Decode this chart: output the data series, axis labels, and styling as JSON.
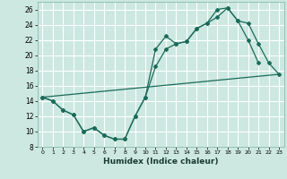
{
  "title": "",
  "xlabel": "Humidex (Indice chaleur)",
  "background_color": "#cce8e0",
  "grid_color": "#ffffff",
  "line_color": "#1a6b5a",
  "xlim": [
    -0.5,
    23.5
  ],
  "ylim": [
    8,
    27
  ],
  "xticks": [
    0,
    1,
    2,
    3,
    4,
    5,
    6,
    7,
    8,
    9,
    10,
    11,
    12,
    13,
    14,
    15,
    16,
    17,
    18,
    19,
    20,
    21,
    22,
    23
  ],
  "yticks": [
    8,
    10,
    12,
    14,
    16,
    18,
    20,
    22,
    24,
    26
  ],
  "series1_x": [
    0,
    1,
    2,
    3,
    4,
    5,
    6,
    7,
    8,
    9,
    10,
    11,
    12,
    13,
    14,
    15,
    16,
    17,
    18,
    19,
    20,
    21
  ],
  "series1_y": [
    14.5,
    14.0,
    12.8,
    12.2,
    10.0,
    10.5,
    9.5,
    9.0,
    9.0,
    12.0,
    14.5,
    20.8,
    22.5,
    21.5,
    21.8,
    23.5,
    24.2,
    26.0,
    26.2,
    24.5,
    22.0,
    19.0
  ],
  "series2_x": [
    0,
    1,
    2,
    3,
    4,
    5,
    6,
    7,
    8,
    9,
    10,
    11,
    12,
    13,
    14,
    15,
    16,
    17,
    18,
    19,
    20,
    21,
    22,
    23
  ],
  "series2_y": [
    14.5,
    14.0,
    12.8,
    12.2,
    10.0,
    10.5,
    9.5,
    9.0,
    9.0,
    12.0,
    14.5,
    18.5,
    20.8,
    21.5,
    21.8,
    23.5,
    24.2,
    25.0,
    26.2,
    24.5,
    24.2,
    21.5,
    19.0,
    17.5
  ],
  "series3_x": [
    0,
    23
  ],
  "series3_y": [
    14.5,
    17.5
  ]
}
